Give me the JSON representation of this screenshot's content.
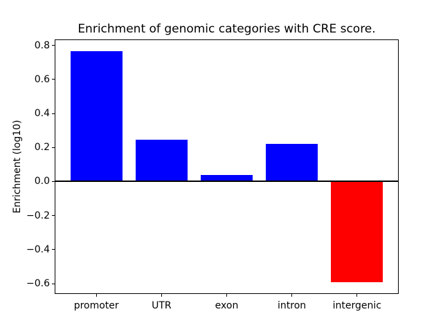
{
  "figure": {
    "background": "#ffffff"
  },
  "chart_data": {
    "type": "bar",
    "title": "Enrichment of genomic categories with CRE score.",
    "xlabel": "",
    "ylabel": "Enrichment (log10)",
    "categories": [
      "promoter",
      "UTR",
      "exon",
      "intron",
      "intergenic"
    ],
    "values": [
      0.765,
      0.247,
      0.038,
      0.223,
      -0.593
    ],
    "positive_color": "#0000ff",
    "negative_color": "#ff0000",
    "bar_width": 0.8,
    "xlim": [
      -0.64,
      4.64
    ],
    "ylim": [
      -0.661,
      0.835
    ],
    "yticks": [
      0.8,
      0.6,
      0.4,
      0.2,
      0.0,
      -0.2,
      -0.4,
      -0.6
    ],
    "ytick_labels": [
      "0.8",
      "0.6",
      "0.4",
      "0.2",
      "0.0",
      "−0.2",
      "−0.4",
      "−0.6"
    ],
    "zero_line": true,
    "zero_line_color": "#000000",
    "grid": false,
    "axis_color": "#000000",
    "text_color": "#000000"
  }
}
